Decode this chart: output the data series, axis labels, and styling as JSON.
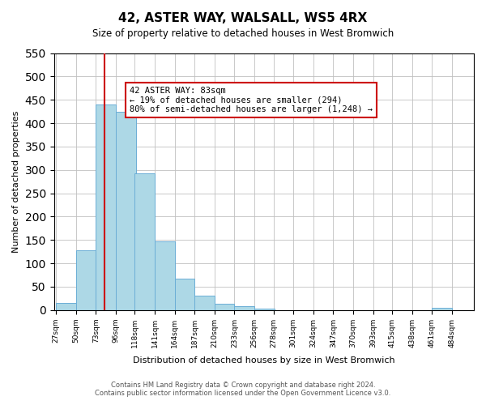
{
  "title": "42, ASTER WAY, WALSALL, WS5 4RX",
  "subtitle": "Size of property relative to detached houses in West Bromwich",
  "xlabel": "Distribution of detached houses by size in West Bromwich",
  "ylabel": "Number of detached properties",
  "bar_values": [
    15,
    128,
    440,
    425,
    292,
    147,
    68,
    30,
    13,
    8,
    3,
    0,
    0,
    0,
    0,
    0,
    0,
    0,
    0,
    5
  ],
  "bin_labels": [
    "27sqm",
    "50sqm",
    "73sqm",
    "96sqm",
    "118sqm",
    "141sqm",
    "164sqm",
    "187sqm",
    "210sqm",
    "233sqm",
    "256sqm",
    "278sqm",
    "301sqm",
    "324sqm",
    "347sqm",
    "370sqm",
    "393sqm",
    "415sqm",
    "438sqm",
    "461sqm",
    "484sqm"
  ],
  "bin_edges": [
    27,
    50,
    73,
    96,
    118,
    141,
    164,
    187,
    210,
    233,
    256,
    278,
    301,
    324,
    347,
    370,
    393,
    415,
    438,
    461,
    484
  ],
  "bar_color": "#add8e6",
  "bar_edge_color": "#6baed6",
  "property_line_x": 83,
  "property_line_color": "#cc0000",
  "annotation_text": "42 ASTER WAY: 83sqm\n← 19% of detached houses are smaller (294)\n80% of semi-detached houses are larger (1,248) →",
  "box_color": "#cc0000",
  "ylim": [
    0,
    550
  ],
  "yticks": [
    0,
    50,
    100,
    150,
    200,
    250,
    300,
    350,
    400,
    450,
    500,
    550
  ],
  "footer_line1": "Contains HM Land Registry data © Crown copyright and database right 2024.",
  "footer_line2": "Contains public sector information licensed under the Open Government Licence v3.0.",
  "background_color": "#ffffff",
  "grid_color": "#c0c0c0"
}
